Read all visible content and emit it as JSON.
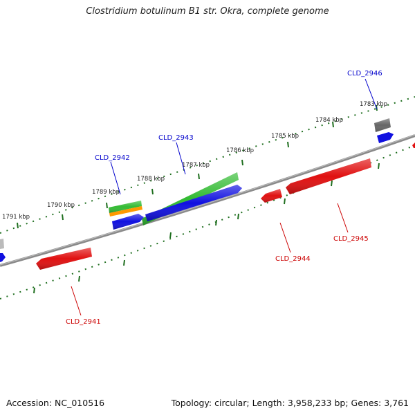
{
  "title": "Clostridium botulinum B1 str. Okra, complete genome",
  "footer": {
    "accession": "Accession: NC_010516",
    "stats": "Topology: circular; Length: 3,958,233 bp; Genes: 3,761"
  },
  "ticks": [
    "1783 kbp",
    "1784 kbp",
    "1785 kbp",
    "1786 kbp",
    "1787 kbp",
    "1788 kbp",
    "1789 kbp",
    "1790 kbp",
    "1791 kbp"
  ],
  "gene_labels": {
    "CLD_2941": "CLD_2941",
    "CLD_2942": "CLD_2942",
    "CLD_2943": "CLD_2943",
    "CLD_2944": "CLD_2944",
    "CLD_2945": "CLD_2945",
    "CLD_2946": "CLD_2946"
  },
  "colors": {
    "backbone": "#808080",
    "ticks": "#1e6e1e",
    "forward_gene": "#1010e0",
    "reverse_gene": "#e01010",
    "green_feature": "#33bb33",
    "orange_feature": "#ff9900",
    "grey_feature": "#666666",
    "label_blue": "#0000cc",
    "label_red": "#cc0000"
  }
}
